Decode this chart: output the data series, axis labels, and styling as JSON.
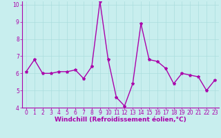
{
  "x": [
    0,
    1,
    2,
    3,
    4,
    5,
    6,
    7,
    8,
    9,
    10,
    11,
    12,
    13,
    14,
    15,
    16,
    17,
    18,
    19,
    20,
    21,
    22,
    23
  ],
  "y": [
    6.1,
    6.8,
    6.0,
    6.0,
    6.1,
    6.1,
    6.2,
    5.7,
    6.4,
    10.2,
    6.8,
    4.6,
    4.1,
    5.4,
    8.9,
    6.8,
    6.7,
    6.3,
    5.4,
    6.0,
    5.9,
    5.8,
    5.0,
    5.6
  ],
  "line_color": "#aa00aa",
  "marker": "*",
  "marker_size": 3,
  "bg_color": "#c8eeee",
  "grid_color": "#aadddd",
  "xlabel": "Windchill (Refroidissement éolien,°C)",
  "xlabel_color": "#aa00aa",
  "tick_color": "#aa00aa",
  "ylim": [
    4,
    10
  ],
  "xlim": [
    -0.5,
    23.5
  ],
  "yticks": [
    4,
    5,
    6,
    7,
    8,
    9,
    10
  ],
  "xticks": [
    0,
    1,
    2,
    3,
    4,
    5,
    6,
    7,
    8,
    9,
    10,
    11,
    12,
    13,
    14,
    15,
    16,
    17,
    18,
    19,
    20,
    21,
    22,
    23
  ],
  "spine_color": "#aa00aa",
  "line_width": 1.0,
  "tick_fontsize": 5.5,
  "xlabel_fontsize": 6.5
}
